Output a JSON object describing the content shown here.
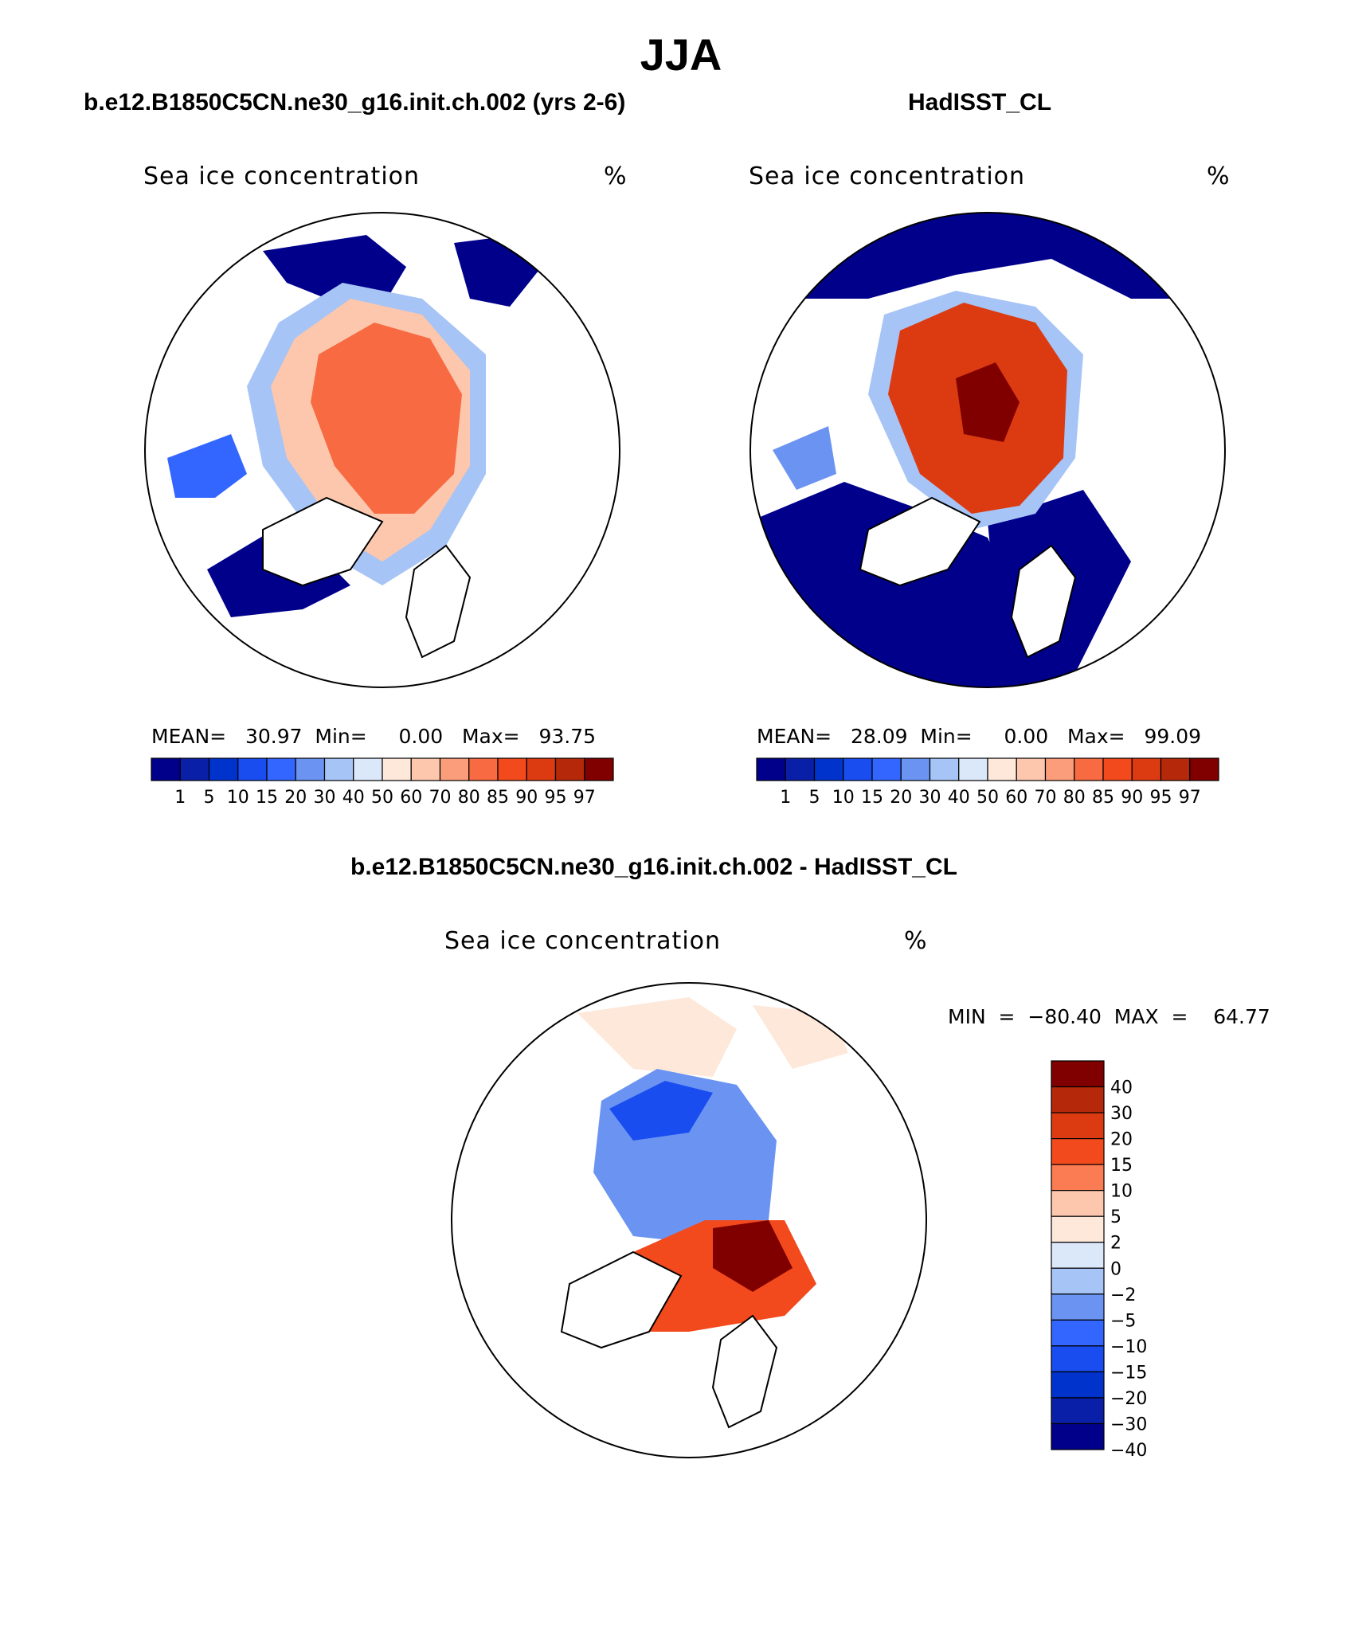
{
  "title": "JJA",
  "panels": [
    {
      "case_title": "b.e12.B1850C5CN.ne30_g16.init.ch.002 (yrs 2-6)",
      "variable": "Sea ice concentration",
      "units": "%",
      "stats": "MEAN=   30.97  Min=     0.00   Max=   93.75"
    },
    {
      "case_title": "HadISST_CL",
      "variable": "Sea ice concentration",
      "units": "%",
      "stats": "MEAN=   28.09  Min=     0.00   Max=   99.09"
    },
    {
      "case_title": "b.e12.B1850C5CN.ne30_g16.init.ch.002 - HadISST_CL",
      "variable": "Sea ice concentration",
      "units": "%",
      "stats": "MIN  =  −80.40  MAX  =    64.77"
    }
  ],
  "colorbar_main": {
    "colors": [
      "#00008b",
      "#0a1fa8",
      "#0033cc",
      "#1a4df0",
      "#3366ff",
      "#6b94f2",
      "#a6c4f5",
      "#dbe8fa",
      "#fde8da",
      "#fcc7ad",
      "#fb9d7a",
      "#f76a42",
      "#f24a1d",
      "#dc3b12",
      "#b5280a",
      "#800000"
    ],
    "labels": [
      "1",
      "5",
      "10",
      "15",
      "20",
      "30",
      "40",
      "50",
      "60",
      "70",
      "80",
      "85",
      "90",
      "95",
      "97"
    ]
  },
  "colorbar_diff": {
    "colors": [
      "#800000",
      "#b5280a",
      "#dc3b12",
      "#f24a1d",
      "#fb7b52",
      "#fcc7ad",
      "#fde8da",
      "#dbe8fa",
      "#a6c4f5",
      "#6b94f2",
      "#3366ff",
      "#1a4df0",
      "#0033cc",
      "#0a1fa8",
      "#00008b"
    ],
    "labels": [
      "40",
      "30",
      "20",
      "15",
      "10",
      "5",
      "2",
      "0",
      "−2",
      "−5",
      "−10",
      "−15",
      "−20",
      "−30",
      "−40"
    ]
  },
  "map_palette": {
    "ocean_ice_free": "#00008b",
    "ice_low": "#3366ff",
    "ice_mid": "#a6c4f5",
    "ice_high": "#f76a42",
    "ice_max": "#b5280a",
    "diff_neg": "#6b94f2",
    "diff_neg_strong": "#1a4df0",
    "diff_pos": "#f24a1d",
    "diff_pos_strong": "#800000",
    "diff_weak": "#fde8da"
  }
}
